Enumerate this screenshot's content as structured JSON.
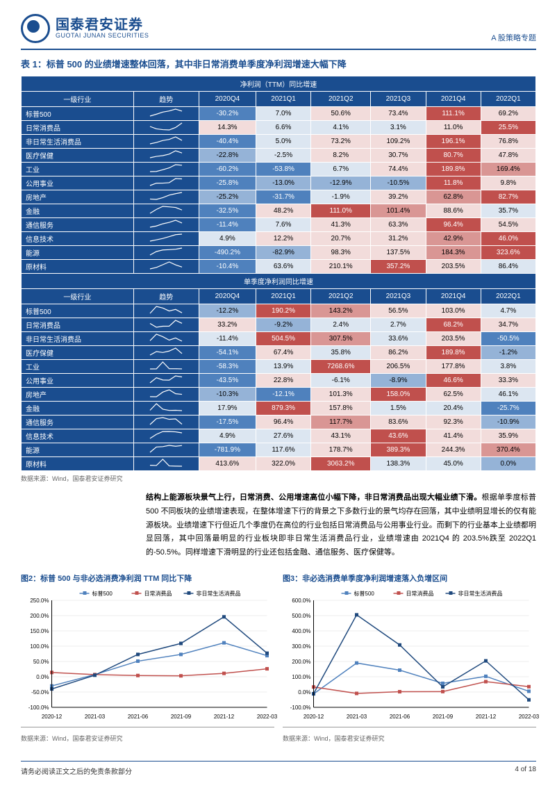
{
  "header": {
    "logo_cn": "国泰君安证券",
    "logo_en": "GUOTAI JUNAN SECURITIES",
    "right": "A 股策略专题"
  },
  "table": {
    "title": "表 1：标普 500 的业绩增速整体回落，其中非日常消费单季度净利润增速大幅下降",
    "section1": "净利润（TTM）同比增速",
    "section2": "单季度净利润同比增速",
    "col_headers": [
      "一级行业",
      "趋势",
      "2020Q4",
      "2021Q1",
      "2021Q2",
      "2021Q3",
      "2021Q4",
      "2022Q1"
    ],
    "colors": {
      "deep_red": "#c0504d",
      "red": "#d99694",
      "lt_red": "#f2dcdb",
      "deep_blue": "#4f81bd",
      "blue": "#95b3d7",
      "lt_blue": "#dce6f1",
      "header": "#1a4d8f"
    },
    "ttm_rows": [
      {
        "label": "标普500",
        "vals": [
          [
            "-30.2%",
            "deep_blue"
          ],
          [
            "7.0%",
            "lt_blue"
          ],
          [
            "50.6%",
            "lt_red"
          ],
          [
            "73.4%",
            "lt_red"
          ],
          [
            "111.1%",
            "deep_red"
          ],
          [
            "69.2%",
            "lt_red"
          ]
        ]
      },
      {
        "label": "日常消费品",
        "vals": [
          [
            "14.3%",
            "lt_red"
          ],
          [
            "6.6%",
            "lt_blue"
          ],
          [
            "4.1%",
            "lt_blue"
          ],
          [
            "3.1%",
            "lt_blue"
          ],
          [
            "11.0%",
            "lt_red"
          ],
          [
            "25.5%",
            "deep_red"
          ]
        ]
      },
      {
        "label": "非日常生活消费品",
        "vals": [
          [
            "-40.4%",
            "deep_blue"
          ],
          [
            "5.0%",
            "lt_blue"
          ],
          [
            "73.2%",
            "lt_red"
          ],
          [
            "109.2%",
            "lt_red"
          ],
          [
            "196.1%",
            "deep_red"
          ],
          [
            "76.8%",
            "lt_red"
          ]
        ]
      },
      {
        "label": "医疗保健",
        "vals": [
          [
            "-22.8%",
            "blue"
          ],
          [
            "-2.5%",
            "lt_blue"
          ],
          [
            "8.2%",
            "lt_red"
          ],
          [
            "30.7%",
            "lt_red"
          ],
          [
            "80.7%",
            "deep_red"
          ],
          [
            "47.8%",
            "lt_red"
          ]
        ]
      },
      {
        "label": "工业",
        "vals": [
          [
            "-60.2%",
            "deep_blue"
          ],
          [
            "-53.8%",
            "deep_blue"
          ],
          [
            "6.7%",
            "lt_blue"
          ],
          [
            "74.4%",
            "lt_red"
          ],
          [
            "189.8%",
            "deep_red"
          ],
          [
            "169.4%",
            "red"
          ]
        ]
      },
      {
        "label": "公用事业",
        "vals": [
          [
            "-25.8%",
            "deep_blue"
          ],
          [
            "-13.0%",
            "blue"
          ],
          [
            "-12.9%",
            "blue"
          ],
          [
            "-10.5%",
            "blue"
          ],
          [
            "11.8%",
            "deep_red"
          ],
          [
            "9.8%",
            "lt_red"
          ]
        ]
      },
      {
        "label": "房地产",
        "vals": [
          [
            "-25.2%",
            "blue"
          ],
          [
            "-31.7%",
            "deep_blue"
          ],
          [
            "-1.9%",
            "lt_blue"
          ],
          [
            "39.2%",
            "lt_red"
          ],
          [
            "62.8%",
            "red"
          ],
          [
            "82.7%",
            "deep_red"
          ]
        ]
      },
      {
        "label": "金融",
        "vals": [
          [
            "-32.5%",
            "deep_blue"
          ],
          [
            "48.2%",
            "lt_red"
          ],
          [
            "111.0%",
            "deep_red"
          ],
          [
            "101.4%",
            "red"
          ],
          [
            "88.6%",
            "lt_red"
          ],
          [
            "35.7%",
            "lt_blue"
          ]
        ]
      },
      {
        "label": "通信服务",
        "vals": [
          [
            "-11.4%",
            "deep_blue"
          ],
          [
            "7.6%",
            "lt_blue"
          ],
          [
            "41.3%",
            "lt_red"
          ],
          [
            "63.3%",
            "lt_red"
          ],
          [
            "96.4%",
            "deep_red"
          ],
          [
            "54.5%",
            "lt_red"
          ]
        ]
      },
      {
        "label": "信息技术",
        "vals": [
          [
            "4.9%",
            "lt_blue"
          ],
          [
            "12.2%",
            "lt_red"
          ],
          [
            "20.7%",
            "lt_red"
          ],
          [
            "31.2%",
            "lt_red"
          ],
          [
            "42.9%",
            "red"
          ],
          [
            "46.0%",
            "deep_red"
          ]
        ]
      },
      {
        "label": "能源",
        "vals": [
          [
            "-490.2%",
            "deep_blue"
          ],
          [
            "-82.9%",
            "blue"
          ],
          [
            "98.3%",
            "lt_red"
          ],
          [
            "137.5%",
            "lt_red"
          ],
          [
            "184.3%",
            "red"
          ],
          [
            "323.6%",
            "deep_red"
          ]
        ]
      },
      {
        "label": "原材料",
        "vals": [
          [
            "-10.4%",
            "deep_blue"
          ],
          [
            "63.6%",
            "lt_blue"
          ],
          [
            "210.1%",
            "lt_red"
          ],
          [
            "357.2%",
            "deep_red"
          ],
          [
            "203.5%",
            "lt_red"
          ],
          [
            "86.4%",
            "lt_blue"
          ]
        ]
      }
    ],
    "q_rows": [
      {
        "label": "标普500",
        "vals": [
          [
            "-12.2%",
            "blue"
          ],
          [
            "190.2%",
            "deep_red"
          ],
          [
            "143.2%",
            "red"
          ],
          [
            "56.5%",
            "lt_red"
          ],
          [
            "103.0%",
            "lt_red"
          ],
          [
            "4.7%",
            "lt_blue"
          ]
        ]
      },
      {
        "label": "日常消费品",
        "vals": [
          [
            "33.2%",
            "lt_red"
          ],
          [
            "-9.2%",
            "blue"
          ],
          [
            "2.4%",
            "lt_blue"
          ],
          [
            "2.7%",
            "lt_blue"
          ],
          [
            "68.2%",
            "deep_red"
          ],
          [
            "34.7%",
            "lt_red"
          ]
        ]
      },
      {
        "label": "非日常生活消费品",
        "vals": [
          [
            "-11.4%",
            "lt_blue"
          ],
          [
            "504.5%",
            "deep_red"
          ],
          [
            "307.5%",
            "red"
          ],
          [
            "33.6%",
            "lt_blue"
          ],
          [
            "203.5%",
            "lt_red"
          ],
          [
            "-50.5%",
            "deep_blue"
          ]
        ]
      },
      {
        "label": "医疗保健",
        "vals": [
          [
            "-54.1%",
            "deep_blue"
          ],
          [
            "67.4%",
            "lt_red"
          ],
          [
            "35.8%",
            "lt_blue"
          ],
          [
            "86.2%",
            "lt_red"
          ],
          [
            "189.8%",
            "deep_red"
          ],
          [
            "-1.2%",
            "blue"
          ]
        ]
      },
      {
        "label": "工业",
        "vals": [
          [
            "-58.3%",
            "deep_blue"
          ],
          [
            "13.9%",
            "lt_blue"
          ],
          [
            "7268.6%",
            "deep_red"
          ],
          [
            "206.5%",
            "lt_red"
          ],
          [
            "177.8%",
            "lt_red"
          ],
          [
            "3.8%",
            "lt_blue"
          ]
        ]
      },
      {
        "label": "公用事业",
        "vals": [
          [
            "-43.5%",
            "deep_blue"
          ],
          [
            "22.8%",
            "lt_red"
          ],
          [
            "-6.1%",
            "lt_blue"
          ],
          [
            "-8.9%",
            "blue"
          ],
          [
            "46.6%",
            "deep_red"
          ],
          [
            "33.3%",
            "lt_red"
          ]
        ]
      },
      {
        "label": "房地产",
        "vals": [
          [
            "-10.3%",
            "blue"
          ],
          [
            "-12.1%",
            "deep_blue"
          ],
          [
            "101.3%",
            "lt_red"
          ],
          [
            "158.0%",
            "deep_red"
          ],
          [
            "62.5%",
            "lt_red"
          ],
          [
            "46.1%",
            "lt_blue"
          ]
        ]
      },
      {
        "label": "金融",
        "vals": [
          [
            "17.9%",
            "lt_blue"
          ],
          [
            "879.3%",
            "deep_red"
          ],
          [
            "157.8%",
            "lt_red"
          ],
          [
            "1.5%",
            "lt_blue"
          ],
          [
            "20.4%",
            "lt_blue"
          ],
          [
            "-25.7%",
            "deep_blue"
          ]
        ]
      },
      {
        "label": "通信服务",
        "vals": [
          [
            "-17.5%",
            "deep_blue"
          ],
          [
            "96.4%",
            "lt_red"
          ],
          [
            "117.7%",
            "red"
          ],
          [
            "83.6%",
            "lt_red"
          ],
          [
            "92.3%",
            "lt_red"
          ],
          [
            "-10.9%",
            "blue"
          ]
        ]
      },
      {
        "label": "信息技术",
        "vals": [
          [
            "4.9%",
            "lt_blue"
          ],
          [
            "27.6%",
            "lt_blue"
          ],
          [
            "43.1%",
            "lt_red"
          ],
          [
            "43.6%",
            "deep_red"
          ],
          [
            "41.4%",
            "lt_red"
          ],
          [
            "35.9%",
            "lt_red"
          ]
        ]
      },
      {
        "label": "能源",
        "vals": [
          [
            "-781.9%",
            "deep_blue"
          ],
          [
            "117.6%",
            "lt_blue"
          ],
          [
            "178.7%",
            "lt_red"
          ],
          [
            "389.3%",
            "deep_red"
          ],
          [
            "244.3%",
            "lt_red"
          ],
          [
            "370.4%",
            "red"
          ]
        ]
      },
      {
        "label": "原材料",
        "vals": [
          [
            "413.6%",
            "lt_red"
          ],
          [
            "322.0%",
            "lt_red"
          ],
          [
            "3063.2%",
            "deep_red"
          ],
          [
            "138.3%",
            "lt_blue"
          ],
          [
            "45.0%",
            "lt_blue"
          ],
          [
            "0.0%",
            "blue"
          ]
        ]
      }
    ],
    "source": "数据来源：Wind，国泰君安证券研究"
  },
  "body_text": {
    "bold": "结构上能源板块景气上行，日常消费、公用增速高位小幅下降，非日常消费品出现大幅业绩下滑。",
    "rest": "根据单季度标普 500 不同板块的业绩增速表现，在整体增速下行的背景之下多数行业的景气均存在回落，其中业绩明显增长的仅有能源板块。业绩增速下行但近几个季度仍在高位的行业包括日常消费品与公用事业行业。而剩下的行业基本上业绩都明显回落，其中回落最明显的行业板块即非日常生活消费品行业，业绩增速由 2021Q4 的 203.5%跌至 2022Q1 的-50.5%。同样增速下滑明显的行业还包括金融、通信服务、医疗保健等。"
  },
  "charts": {
    "left": {
      "title": "图2：标普 500 与非必选消费净利润 TTM 同比下降",
      "legend": [
        "标普500",
        "日常消费品",
        "非日常生活消费品"
      ],
      "colors": [
        "#4f81bd",
        "#c0504d",
        "#1f497d"
      ],
      "x_labels": [
        "2020-12",
        "2021-03",
        "2021-06",
        "2021-09",
        "2021-12",
        "2022-03"
      ],
      "y_ticks": [
        "-100.0%",
        "-50.0%",
        "0.0%",
        "50.0%",
        "100.0%",
        "150.0%",
        "200.0%",
        "250.0%"
      ],
      "ylim": [
        -100,
        250
      ],
      "series": [
        [
          -30,
          7,
          51,
          73,
          111,
          69
        ],
        [
          14,
          7,
          4,
          3,
          11,
          26
        ],
        [
          -40,
          5,
          73,
          109,
          196,
          77
        ]
      ],
      "source": "数据来源：Wind，国泰君安证券研究"
    },
    "right": {
      "title": "图3：非必选消费单季度净利润增速落入负增区间",
      "legend": [
        "标普500",
        "日常消费品",
        "非日常生活消费品"
      ],
      "colors": [
        "#4f81bd",
        "#c0504d",
        "#1f497d"
      ],
      "x_labels": [
        "2020-12",
        "2021-03",
        "2021-06",
        "2021-09",
        "2021-12",
        "2022-03"
      ],
      "y_ticks": [
        "-100.0%",
        "0.0%",
        "100.0%",
        "200.0%",
        "300.0%",
        "400.0%",
        "500.0%",
        "600.0%"
      ],
      "ylim": [
        -100,
        600
      ],
      "series": [
        [
          -12,
          190,
          143,
          57,
          103,
          5
        ],
        [
          33,
          -9,
          2,
          3,
          68,
          35
        ],
        [
          -11,
          505,
          308,
          34,
          204,
          -51
        ]
      ],
      "source": "数据来源：Wind，国泰君安证券研究"
    }
  },
  "footer": {
    "left": "请务必阅读正文之后的免责条款部分",
    "right": "4 of 18"
  }
}
